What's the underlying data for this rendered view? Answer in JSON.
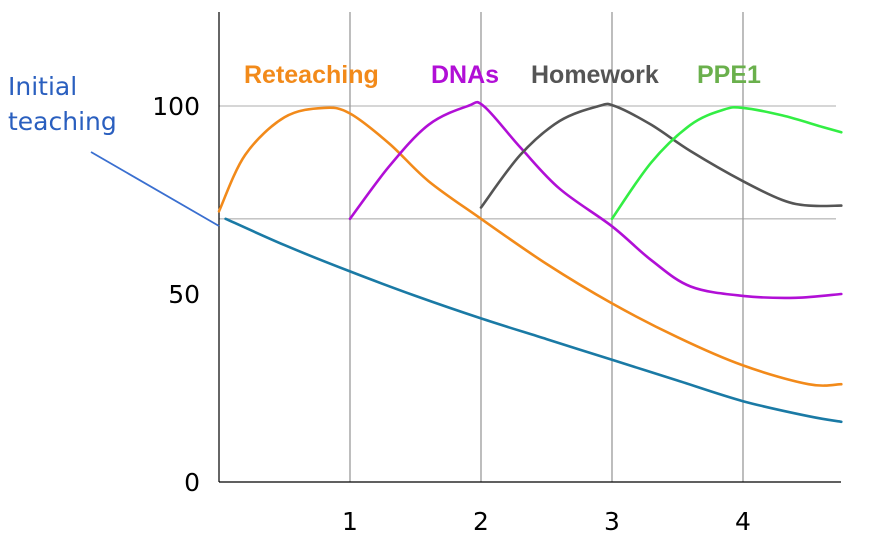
{
  "chart_data": {
    "type": "line",
    "title": "",
    "xlabel": "",
    "ylabel": "",
    "xlim": [
      0,
      4.75
    ],
    "ylim": [
      0,
      120
    ],
    "x_ticks": [
      "1",
      "2",
      "3",
      "4"
    ],
    "y_ticks": [
      "0",
      "50",
      "100"
    ],
    "gridlines_y": [
      100,
      70
    ],
    "gridlines_x": [
      1,
      2,
      3,
      4
    ],
    "annotation": {
      "text_line1": "Initial",
      "text_line2": "teaching",
      "color": "#2a5fbf"
    },
    "series": [
      {
        "name": "Initial teaching",
        "color": "#1a7aa5",
        "x": [
          0.05,
          0.5,
          1,
          1.5,
          2,
          2.5,
          3,
          3.5,
          4,
          4.5,
          4.75
        ],
        "y": [
          70,
          63,
          56,
          49.5,
          43.5,
          38,
          32.5,
          27,
          21.5,
          17.5,
          16
        ]
      },
      {
        "name": "Reteaching",
        "color": "#f28a1a",
        "x": [
          0,
          0.2,
          0.5,
          0.8,
          1,
          1.3,
          1.6,
          2,
          2.5,
          3,
          3.5,
          4,
          4.5,
          4.75
        ],
        "y": [
          72,
          87,
          97,
          99.5,
          98,
          90,
          80,
          70,
          58,
          47.5,
          38.5,
          31,
          26,
          26
        ]
      },
      {
        "name": "DNAs",
        "color": "#b10fd6",
        "x": [
          1,
          1.3,
          1.6,
          1.9,
          2.02,
          2.3,
          2.6,
          3,
          3.3,
          3.6,
          4,
          4.4,
          4.75
        ],
        "y": [
          70,
          84,
          95,
          100,
          100,
          89,
          78,
          68,
          59,
          52,
          49.5,
          49,
          50
        ]
      },
      {
        "name": "Homework",
        "color": "#555555",
        "x": [
          2,
          2.3,
          2.6,
          2.9,
          3.02,
          3.3,
          3.6,
          4,
          4.3,
          4.5,
          4.75
        ],
        "y": [
          73,
          87,
          96,
          100,
          100,
          95,
          88,
          80,
          75,
          73.5,
          73.5
        ]
      },
      {
        "name": "PPE1",
        "color": "#33ee44",
        "label_color": "#6ab04c",
        "x": [
          3,
          3.3,
          3.6,
          3.85,
          4,
          4.3,
          4.6,
          4.75
        ],
        "y": [
          70,
          85,
          95,
          99,
          99.5,
          97.5,
          94.5,
          93
        ]
      }
    ]
  }
}
